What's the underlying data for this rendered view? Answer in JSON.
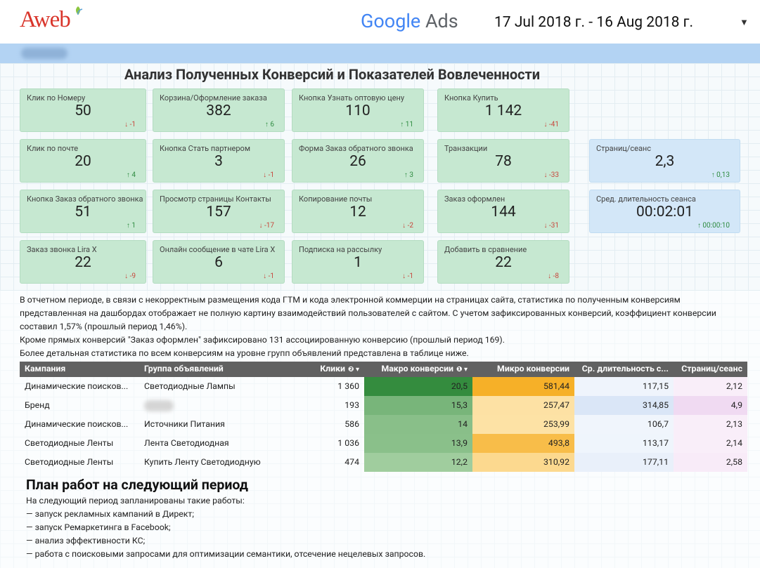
{
  "header": {
    "logo": "Aweb",
    "product_brand": "Google",
    "product_name": "Ads",
    "date_range": "17 Jul 2018 г. - 16 Aug 2018 г."
  },
  "title": "Анализ Полученных Конверсий и Показателей Вовлеченности",
  "conversion_cards": [
    {
      "label": "Клик по Номеру",
      "value": "50",
      "delta": "-1"
    },
    {
      "label": "Корзина/Оформление заказа",
      "value": "382",
      "delta": "6"
    },
    {
      "label": "Кнопка Узнать оптовую цену",
      "value": "110",
      "delta": "11"
    },
    {
      "label": "Кнопка Купить",
      "value": "1 142",
      "delta": "-41"
    },
    {
      "label": "Клик по почте",
      "value": "20",
      "delta": "4"
    },
    {
      "label": "Кнопка Стать партнером",
      "value": "3",
      "delta": "-1"
    },
    {
      "label": "Форма Заказ обратного звонка",
      "value": "26",
      "delta": "3"
    },
    {
      "label": "Транзакции",
      "value": "78",
      "delta": "-33"
    },
    {
      "label": "Кнопка Заказ обратного звонка",
      "value": "51",
      "delta": "1"
    },
    {
      "label": "Просмотр страницы Контакты",
      "value": "157",
      "delta": "-17"
    },
    {
      "label": "Копирование почты",
      "value": "12",
      "delta": "-2"
    },
    {
      "label": "Заказ оформлен",
      "value": "144",
      "delta": "-31"
    },
    {
      "label": "Заказ звонка Lira X",
      "value": "22",
      "delta": "-9"
    },
    {
      "label": "Онлайн сообщение в чате Lira X",
      "value": "6",
      "delta": "-1"
    },
    {
      "label": "Подписка на рассылку",
      "value": "1",
      "delta": "-1"
    },
    {
      "label": "Добавить в сравнение",
      "value": "22",
      "delta": "-8"
    }
  ],
  "engagement_cards": [
    {
      "label": "Страниц/сеанс",
      "value": "2,3",
      "delta": "0,13"
    },
    {
      "label": "Сред. длительность сеанса",
      "value": "00:02:01",
      "delta": "00:00:10"
    }
  ],
  "summary": [
    "В отчетном периоде, в связи с некорректным размещения кода ГТМ и кода электронной коммерции на страницах сайта, статистика по полученным конверсиям представленная на дашбордах отображает не полную картину взаимодействий пользователей с сайтом. С учетом зафиксированных конверсий, коэффициент конверсии составил 1,57% (прошлый период 1,46%).",
    "Кроме прямых конверсий \"Заказ оформлен\" зафиксировано 131 ассоциированную конверсию (прошлый период 169).",
    "Более детальная статистика по всем конверсиям на уровне групп объявлений представлена в таблице ниже."
  ],
  "table": {
    "columns": [
      "Кампания",
      "Группа объявлений",
      "Клики",
      "Макро конверсии",
      "Микро конверсии",
      "Ср. длительность с...",
      "Страниц/сеанс"
    ],
    "rows": [
      [
        "Динамические поисков...",
        "Светодиодные Лампы",
        "1 360",
        "20,5",
        "581,44",
        "117,15",
        "2,12"
      ],
      [
        "Бренд",
        null,
        "193",
        "15,3",
        "257,47",
        "314,85",
        "4,9"
      ],
      [
        "Динамические поисков...",
        "Источники Питания",
        "586",
        "14",
        "253,99",
        "106,7",
        "2,13"
      ],
      [
        "Светодиодные Ленты",
        "Лента Светодиодная",
        "1 036",
        "13,9",
        "493,8",
        "113,17",
        "2,14"
      ],
      [
        "Светодиодные Ленты",
        "Купить Ленту Светодиодную",
        "474",
        "12,2",
        "310,92",
        "177,11",
        "2,58"
      ]
    ]
  },
  "plan": {
    "title": "План работ на следующий период",
    "items": [
      "На следующий период запланированы такие работы:",
      "— запуск рекламных кампаний в Директ;",
      "— запуск Ремаркетинга в Facebook;",
      "— анализ эффективности КС;",
      "— работа с поисковыми запросами для оптимизации семантики, отсечение нецелевых запросов."
    ]
  }
}
